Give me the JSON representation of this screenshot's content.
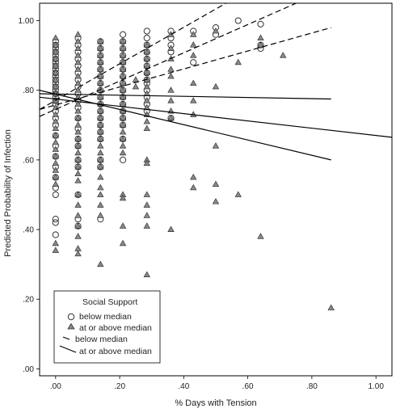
{
  "chart_data": {
    "type": "scatter",
    "xlabel": "% Days with Tension",
    "ylabel": "Predicted Probability of Infection",
    "xlim": [
      -0.05,
      1.05
    ],
    "ylim": [
      -0.02,
      1.05
    ],
    "x_ticks": [
      0,
      0.2,
      0.4,
      0.6,
      0.8,
      1.0
    ],
    "x_tick_labels": [
      ".00",
      ".20",
      ".40",
      ".60",
      ".80",
      "1.00"
    ],
    "y_ticks": [
      0,
      0.2,
      0.4,
      0.6,
      0.8,
      1.0
    ],
    "y_tick_labels": [
      ".00",
      ".20",
      ".40",
      ".60",
      ".80",
      "1.00"
    ],
    "grid": false,
    "legend": {
      "placement": "bottom-left",
      "title": "Social Support",
      "entries": [
        {
          "marker": "circle",
          "label": "below median"
        },
        {
          "marker": "triangle",
          "label": "at or above median"
        },
        {
          "marker": "dashed-line",
          "label": "below median"
        },
        {
          "marker": "solid-line",
          "label": "at or above median"
        }
      ]
    },
    "series": [
      {
        "name": "below median",
        "marker": "circle",
        "points": [
          [
            0,
            0.94
          ],
          [
            0,
            0.93
          ],
          [
            0,
            0.92
          ],
          [
            0,
            0.91
          ],
          [
            0,
            0.9
          ],
          [
            0,
            0.89
          ],
          [
            0,
            0.88
          ],
          [
            0,
            0.87
          ],
          [
            0,
            0.86
          ],
          [
            0,
            0.85
          ],
          [
            0,
            0.84
          ],
          [
            0,
            0.83
          ],
          [
            0,
            0.82
          ],
          [
            0,
            0.81
          ],
          [
            0,
            0.8
          ],
          [
            0,
            0.79
          ],
          [
            0,
            0.78
          ],
          [
            0,
            0.77
          ],
          [
            0,
            0.76
          ],
          [
            0,
            0.74
          ],
          [
            0,
            0.72
          ],
          [
            0,
            0.7
          ],
          [
            0,
            0.67
          ],
          [
            0,
            0.64
          ],
          [
            0,
            0.61
          ],
          [
            0,
            0.58
          ],
          [
            0,
            0.55
          ],
          [
            0,
            0.52
          ],
          [
            0,
            0.5
          ],
          [
            0,
            0.43
          ],
          [
            0,
            0.42
          ],
          [
            0,
            0.385
          ],
          [
            0.07,
            0.95
          ],
          [
            0.07,
            0.93
          ],
          [
            0.07,
            0.91
          ],
          [
            0.07,
            0.89
          ],
          [
            0.07,
            0.87
          ],
          [
            0.07,
            0.85
          ],
          [
            0.07,
            0.83
          ],
          [
            0.07,
            0.81
          ],
          [
            0.07,
            0.79
          ],
          [
            0.07,
            0.77
          ],
          [
            0.07,
            0.75
          ],
          [
            0.07,
            0.72
          ],
          [
            0.07,
            0.69
          ],
          [
            0.07,
            0.66
          ],
          [
            0.07,
            0.64
          ],
          [
            0.07,
            0.6
          ],
          [
            0.07,
            0.58
          ],
          [
            0.07,
            0.5
          ],
          [
            0.07,
            0.43
          ],
          [
            0.07,
            0.41
          ],
          [
            0.14,
            0.94
          ],
          [
            0.14,
            0.92
          ],
          [
            0.14,
            0.9
          ],
          [
            0.14,
            0.88
          ],
          [
            0.14,
            0.86
          ],
          [
            0.14,
            0.84
          ],
          [
            0.14,
            0.82
          ],
          [
            0.14,
            0.8
          ],
          [
            0.14,
            0.78
          ],
          [
            0.14,
            0.76
          ],
          [
            0.14,
            0.74
          ],
          [
            0.14,
            0.72
          ],
          [
            0.14,
            0.7
          ],
          [
            0.14,
            0.68
          ],
          [
            0.14,
            0.66
          ],
          [
            0.14,
            0.6
          ],
          [
            0.14,
            0.58
          ],
          [
            0.14,
            0.43
          ],
          [
            0.21,
            0.96
          ],
          [
            0.21,
            0.94
          ],
          [
            0.21,
            0.92
          ],
          [
            0.21,
            0.9
          ],
          [
            0.21,
            0.88
          ],
          [
            0.21,
            0.86
          ],
          [
            0.21,
            0.84
          ],
          [
            0.21,
            0.82
          ],
          [
            0.21,
            0.8
          ],
          [
            0.21,
            0.78
          ],
          [
            0.21,
            0.76
          ],
          [
            0.21,
            0.74
          ],
          [
            0.21,
            0.72
          ],
          [
            0.21,
            0.7
          ],
          [
            0.21,
            0.66
          ],
          [
            0.21,
            0.6
          ],
          [
            0.285,
            0.97
          ],
          [
            0.285,
            0.95
          ],
          [
            0.285,
            0.93
          ],
          [
            0.285,
            0.91
          ],
          [
            0.285,
            0.89
          ],
          [
            0.285,
            0.87
          ],
          [
            0.285,
            0.85
          ],
          [
            0.285,
            0.83
          ],
          [
            0.285,
            0.82
          ],
          [
            0.285,
            0.8
          ],
          [
            0.285,
            0.78
          ],
          [
            0.285,
            0.76
          ],
          [
            0.285,
            0.74
          ],
          [
            0.36,
            0.97
          ],
          [
            0.36,
            0.95
          ],
          [
            0.36,
            0.93
          ],
          [
            0.36,
            0.91
          ],
          [
            0.36,
            0.72
          ],
          [
            0.43,
            0.97
          ],
          [
            0.43,
            0.88
          ],
          [
            0.5,
            0.98
          ],
          [
            0.5,
            0.96
          ],
          [
            0.57,
            1.0
          ],
          [
            0.64,
            0.99
          ],
          [
            0.64,
            0.93
          ],
          [
            0.64,
            0.92
          ]
        ]
      },
      {
        "name": "at or above median",
        "marker": "triangle",
        "points": [
          [
            0,
            0.95
          ],
          [
            0,
            0.93
          ],
          [
            0,
            0.91
          ],
          [
            0,
            0.89
          ],
          [
            0,
            0.87
          ],
          [
            0,
            0.85
          ],
          [
            0,
            0.83
          ],
          [
            0,
            0.81
          ],
          [
            0,
            0.79
          ],
          [
            0,
            0.77
          ],
          [
            0,
            0.75
          ],
          [
            0,
            0.73
          ],
          [
            0,
            0.71
          ],
          [
            0,
            0.69
          ],
          [
            0,
            0.67
          ],
          [
            0,
            0.65
          ],
          [
            0,
            0.63
          ],
          [
            0,
            0.61
          ],
          [
            0,
            0.59
          ],
          [
            0,
            0.57
          ],
          [
            0,
            0.55
          ],
          [
            0,
            0.53
          ],
          [
            0,
            0.36
          ],
          [
            0,
            0.34
          ],
          [
            0.07,
            0.96
          ],
          [
            0.07,
            0.94
          ],
          [
            0.07,
            0.92
          ],
          [
            0.07,
            0.9
          ],
          [
            0.07,
            0.88
          ],
          [
            0.07,
            0.86
          ],
          [
            0.07,
            0.84
          ],
          [
            0.07,
            0.82
          ],
          [
            0.07,
            0.8
          ],
          [
            0.07,
            0.78
          ],
          [
            0.07,
            0.76
          ],
          [
            0.07,
            0.74
          ],
          [
            0.07,
            0.72
          ],
          [
            0.07,
            0.7
          ],
          [
            0.07,
            0.68
          ],
          [
            0.07,
            0.66
          ],
          [
            0.07,
            0.64
          ],
          [
            0.07,
            0.62
          ],
          [
            0.07,
            0.6
          ],
          [
            0.07,
            0.58
          ],
          [
            0.07,
            0.56
          ],
          [
            0.07,
            0.54
          ],
          [
            0.07,
            0.5
          ],
          [
            0.07,
            0.47
          ],
          [
            0.07,
            0.44
          ],
          [
            0.07,
            0.41
          ],
          [
            0.07,
            0.38
          ],
          [
            0.07,
            0.345
          ],
          [
            0.07,
            0.33
          ],
          [
            0.14,
            0.94
          ],
          [
            0.14,
            0.92
          ],
          [
            0.14,
            0.9
          ],
          [
            0.14,
            0.88
          ],
          [
            0.14,
            0.86
          ],
          [
            0.14,
            0.84
          ],
          [
            0.14,
            0.82
          ],
          [
            0.14,
            0.8
          ],
          [
            0.14,
            0.78
          ],
          [
            0.14,
            0.76
          ],
          [
            0.14,
            0.74
          ],
          [
            0.14,
            0.72
          ],
          [
            0.14,
            0.7
          ],
          [
            0.14,
            0.68
          ],
          [
            0.14,
            0.66
          ],
          [
            0.14,
            0.64
          ],
          [
            0.14,
            0.62
          ],
          [
            0.14,
            0.6
          ],
          [
            0.14,
            0.58
          ],
          [
            0.14,
            0.55
          ],
          [
            0.14,
            0.52
          ],
          [
            0.14,
            0.5
          ],
          [
            0.14,
            0.47
          ],
          [
            0.14,
            0.44
          ],
          [
            0.14,
            0.3
          ],
          [
            0.21,
            0.94
          ],
          [
            0.21,
            0.92
          ],
          [
            0.21,
            0.9
          ],
          [
            0.21,
            0.88
          ],
          [
            0.21,
            0.86
          ],
          [
            0.21,
            0.84
          ],
          [
            0.21,
            0.82
          ],
          [
            0.21,
            0.8
          ],
          [
            0.21,
            0.78
          ],
          [
            0.21,
            0.76
          ],
          [
            0.21,
            0.74
          ],
          [
            0.21,
            0.72
          ],
          [
            0.21,
            0.7
          ],
          [
            0.21,
            0.68
          ],
          [
            0.21,
            0.66
          ],
          [
            0.21,
            0.64
          ],
          [
            0.21,
            0.62
          ],
          [
            0.21,
            0.5
          ],
          [
            0.21,
            0.49
          ],
          [
            0.21,
            0.41
          ],
          [
            0.21,
            0.36
          ],
          [
            0.25,
            0.83
          ],
          [
            0.25,
            0.81
          ],
          [
            0.285,
            0.93
          ],
          [
            0.285,
            0.91
          ],
          [
            0.285,
            0.89
          ],
          [
            0.285,
            0.87
          ],
          [
            0.285,
            0.85
          ],
          [
            0.285,
            0.83
          ],
          [
            0.285,
            0.81
          ],
          [
            0.285,
            0.79
          ],
          [
            0.285,
            0.77
          ],
          [
            0.285,
            0.75
          ],
          [
            0.285,
            0.73
          ],
          [
            0.285,
            0.71
          ],
          [
            0.285,
            0.69
          ],
          [
            0.285,
            0.6
          ],
          [
            0.285,
            0.59
          ],
          [
            0.285,
            0.5
          ],
          [
            0.285,
            0.47
          ],
          [
            0.285,
            0.44
          ],
          [
            0.285,
            0.41
          ],
          [
            0.285,
            0.27
          ],
          [
            0.36,
            0.96
          ],
          [
            0.36,
            0.92
          ],
          [
            0.36,
            0.89
          ],
          [
            0.36,
            0.86
          ],
          [
            0.36,
            0.84
          ],
          [
            0.36,
            0.8
          ],
          [
            0.36,
            0.77
          ],
          [
            0.36,
            0.74
          ],
          [
            0.36,
            0.72
          ],
          [
            0.36,
            0.4
          ],
          [
            0.43,
            0.96
          ],
          [
            0.43,
            0.93
          ],
          [
            0.43,
            0.9
          ],
          [
            0.43,
            0.82
          ],
          [
            0.43,
            0.77
          ],
          [
            0.43,
            0.73
          ],
          [
            0.43,
            0.55
          ],
          [
            0.43,
            0.52
          ],
          [
            0.5,
            0.97
          ],
          [
            0.5,
            0.81
          ],
          [
            0.5,
            0.64
          ],
          [
            0.5,
            0.53
          ],
          [
            0.5,
            0.48
          ],
          [
            0.57,
            0.88
          ],
          [
            0.57,
            0.5
          ],
          [
            0.64,
            0.95
          ],
          [
            0.64,
            0.93
          ],
          [
            0.64,
            0.38
          ],
          [
            0.71,
            0.9
          ],
          [
            0.86,
            0.175
          ]
        ]
      }
    ],
    "fit_lines": [
      {
        "group": "below median",
        "style": "dashed",
        "points": [
          [
            -0.05,
            0.745
          ],
          [
            0.57,
            1.07
          ]
        ]
      },
      {
        "group": "below median",
        "style": "dashed",
        "points": [
          [
            -0.05,
            0.725
          ],
          [
            0.8,
            1.07
          ]
        ]
      },
      {
        "group": "below median",
        "style": "dashed",
        "points": [
          [
            -0.05,
            0.745
          ],
          [
            0.86,
            0.98
          ]
        ]
      },
      {
        "group": "at or above median",
        "style": "solid",
        "points": [
          [
            -0.05,
            0.79
          ],
          [
            0.86,
            0.775
          ]
        ]
      },
      {
        "group": "at or above median",
        "style": "solid",
        "points": [
          [
            -0.05,
            0.78
          ],
          [
            1.05,
            0.665
          ]
        ]
      },
      {
        "group": "at or above median",
        "style": "solid",
        "points": [
          [
            -0.05,
            0.8
          ],
          [
            0.86,
            0.6
          ]
        ]
      }
    ]
  }
}
